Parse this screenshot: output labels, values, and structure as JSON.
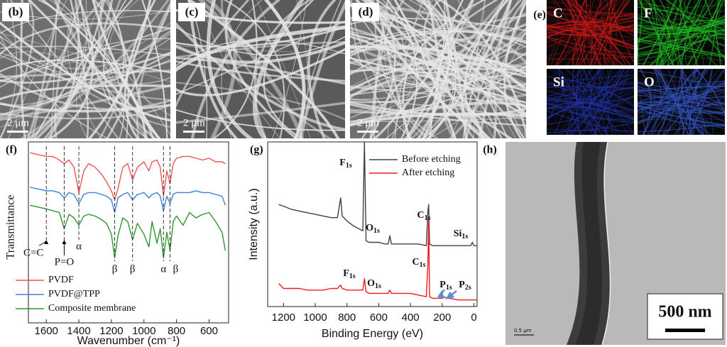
{
  "sem_panels": [
    {
      "label": "(b)",
      "scale": "2 μm"
    },
    {
      "label": "(c)",
      "scale": "2 μm"
    },
    {
      "label": "(d)",
      "scale": "2 μm"
    }
  ],
  "eds": {
    "label": "(e)",
    "maps": [
      {
        "element": "C",
        "color": "#c81818"
      },
      {
        "element": "F",
        "color": "#22c422"
      },
      {
        "element": "Si",
        "color": "#2232a8"
      },
      {
        "element": "O",
        "color": "#3456c8"
      }
    ]
  },
  "tem": {
    "label": "(h)",
    "scale": "500 nm",
    "small_scale": "0.5 μm"
  },
  "chart_data": [
    {
      "type": "line",
      "panel_label": "(f)",
      "xlabel": "Wavenumber (cm⁻¹)",
      "ylabel": "Transmittance",
      "xlim": [
        1710,
        480
      ],
      "xticks": [
        1600,
        1400,
        1200,
        1000,
        800,
        600
      ],
      "ylim": [
        0,
        10
      ],
      "legend": "lower left",
      "x": [
        1700,
        1650,
        1600,
        1560,
        1520,
        1490,
        1460,
        1430,
        1400,
        1370,
        1340,
        1300,
        1260,
        1230,
        1200,
        1180,
        1160,
        1130,
        1100,
        1070,
        1040,
        1000,
        970,
        950,
        920,
        900,
        880,
        860,
        840,
        820,
        800,
        760,
        720,
        680,
        640,
        600,
        560,
        520,
        500
      ],
      "series": [
        {
          "name": "PVDF",
          "color": "#f05454",
          "values": [
            9.4,
            9.3,
            9.2,
            9.2,
            9.0,
            8.8,
            9.0,
            8.6,
            7.2,
            8.4,
            8.8,
            8.6,
            8.2,
            7.8,
            7.3,
            6.8,
            7.4,
            8.6,
            8.8,
            7.9,
            8.6,
            8.9,
            8.4,
            8.9,
            9.0,
            8.6,
            7.0,
            8.4,
            7.7,
            8.8,
            9.1,
            9.2,
            9.2,
            9.1,
            9.0,
            9.1,
            8.9,
            8.9,
            8.8
          ]
        },
        {
          "name": "PVDF@TPP",
          "color": "#3a80dc",
          "values": [
            7.5,
            7.4,
            7.3,
            7.3,
            7.2,
            6.9,
            7.2,
            7.1,
            6.6,
            7.1,
            7.2,
            7.2,
            7.1,
            7.0,
            6.8,
            6.1,
            6.9,
            7.1,
            7.2,
            6.8,
            7.1,
            7.2,
            6.9,
            7.1,
            7.2,
            7.0,
            6.2,
            7.0,
            6.6,
            7.1,
            7.2,
            7.2,
            7.2,
            7.3,
            7.2,
            7.2,
            7.1,
            7.0,
            6.5
          ]
        },
        {
          "name": "Composite membrane",
          "color": "#2e962e",
          "values": [
            6.5,
            6.4,
            6.3,
            6.2,
            6.1,
            5.2,
            6.0,
            5.8,
            5.4,
            5.9,
            6.0,
            5.9,
            5.7,
            5.5,
            4.9,
            3.6,
            4.8,
            5.8,
            5.6,
            4.6,
            5.5,
            4.9,
            4.2,
            5.6,
            4.4,
            5.2,
            3.6,
            5.0,
            4.0,
            5.6,
            5.9,
            5.4,
            6.1,
            5.8,
            6.0,
            6.1,
            5.6,
            5.0,
            4.0
          ]
        }
      ],
      "markers": [
        {
          "x": 1600,
          "label": "C=C"
        },
        {
          "x": 1490,
          "label": "P=O"
        },
        {
          "x": 1400,
          "label": "α"
        },
        {
          "x": 1180,
          "label": "β"
        },
        {
          "x": 1070,
          "label": "β"
        },
        {
          "x": 880,
          "label": "α"
        },
        {
          "x": 840,
          "label": "β"
        }
      ]
    },
    {
      "type": "line",
      "panel_label": "(g)",
      "xlabel": "Binding Energy (eV)",
      "ylabel": "Intensity (a.u.)",
      "xlim": [
        1300,
        -20
      ],
      "xticks": [
        1200,
        1000,
        800,
        600,
        400,
        200,
        0
      ],
      "ylim": [
        0,
        10
      ],
      "legend": "upper right",
      "x": [
        1300,
        1250,
        1230,
        1200,
        1150,
        1100,
        1050,
        1000,
        950,
        900,
        860,
        840,
        830,
        800,
        760,
        720,
        700,
        690,
        680,
        660,
        600,
        560,
        540,
        530,
        520,
        450,
        400,
        350,
        300,
        290,
        285,
        280,
        260,
        200,
        190,
        170,
        150,
        100,
        50,
        20,
        10,
        0,
        -20
      ],
      "series": [
        {
          "name": "Before etching",
          "color": "#404040",
          "values": [
            null,
            null,
            6.2,
            6.1,
            5.9,
            5.8,
            5.7,
            5.6,
            5.5,
            5.4,
            5.4,
            6.6,
            5.5,
            5.2,
            4.9,
            4.7,
            4.6,
            10,
            4.0,
            3.9,
            3.9,
            3.8,
            3.8,
            4.3,
            3.8,
            3.8,
            3.8,
            3.8,
            3.7,
            5.8,
            6.2,
            3.8,
            3.7,
            3.7,
            3.7,
            3.7,
            3.7,
            3.7,
            3.7,
            3.7,
            3.9,
            3.7,
            3.7
          ]
        },
        {
          "name": "After etching",
          "color": "#f01c1c",
          "values": [
            null,
            null,
            1.4,
            1.1,
            1.1,
            1.1,
            1.0,
            1.0,
            1.0,
            1.1,
            1.1,
            1.3,
            1.1,
            1.0,
            1.0,
            1.0,
            1.0,
            1.7,
            0.9,
            0.8,
            0.8,
            0.8,
            0.8,
            1.0,
            0.8,
            0.8,
            0.8,
            0.7,
            0.6,
            2.6,
            5.4,
            0.6,
            0.5,
            0.5,
            0.6,
            0.5,
            0.5,
            0.4,
            0.4,
            0.4,
            0.4,
            0.4,
            0.4
          ]
        }
      ],
      "annotations": [
        {
          "text": "F",
          "sub": "1s"
        },
        {
          "text": "O",
          "sub": "1s"
        },
        {
          "text": "C",
          "sub": "1s"
        },
        {
          "text": "Si",
          "sub": "1s"
        },
        {
          "text": "F",
          "sub": "1s"
        },
        {
          "text": "O",
          "sub": "1s"
        },
        {
          "text": "C",
          "sub": "1s"
        },
        {
          "text": "P",
          "sub": "1s"
        },
        {
          "text": "P",
          "sub": "2s"
        }
      ]
    }
  ]
}
